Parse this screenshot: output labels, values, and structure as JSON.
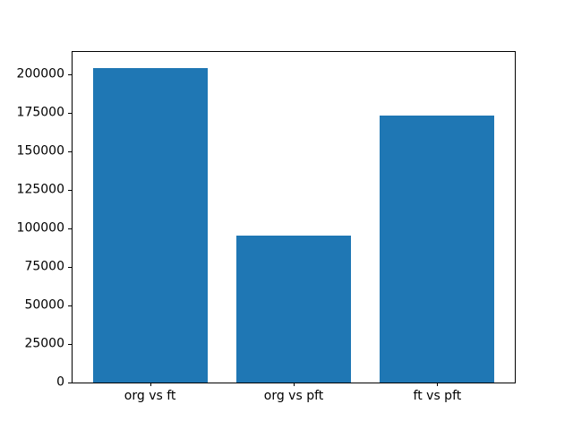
{
  "figure": {
    "background_color": "#ffffff",
    "spine_color": "#000000",
    "text_color": "#000000"
  },
  "chart_data": {
    "type": "bar",
    "categories": [
      "org vs ft",
      "org vs pft",
      "ft vs pft"
    ],
    "values": [
      204000,
      95000,
      173000
    ],
    "title": "",
    "xlabel": "",
    "ylabel": "",
    "ylim": [
      0,
      214200
    ],
    "xlim": [
      -0.54,
      2.54
    ],
    "bar_width": 0.8,
    "yticks": [
      0,
      25000,
      50000,
      75000,
      100000,
      125000,
      150000,
      175000,
      200000
    ],
    "ytick_labels": [
      "0",
      "25000",
      "50000",
      "75000",
      "100000",
      "125000",
      "150000",
      "175000",
      "200000"
    ],
    "bar_color": "#1f77b4",
    "grid": false,
    "legend_position": "none"
  }
}
